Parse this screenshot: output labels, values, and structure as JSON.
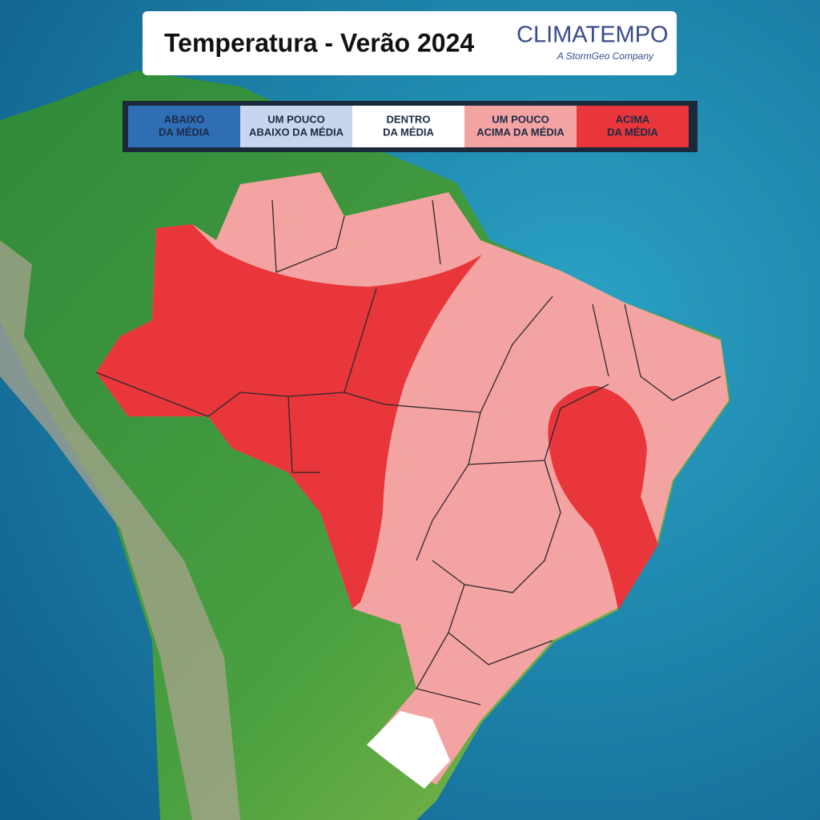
{
  "header": {
    "title": "Temperatura - Verão 2024",
    "logo": "CLIMATEMPO",
    "logo_tagline": "A StormGeo Company"
  },
  "legend": {
    "items": [
      {
        "lines": [
          "ABAIXO",
          "DA MÉDIA"
        ],
        "color": "#2f6db5",
        "text_color": "#1b2a44"
      },
      {
        "lines": [
          "UM POUCO",
          "ABAIXO DA MÉDIA"
        ],
        "color": "#c5d6ee",
        "text_color": "#1b2a44"
      },
      {
        "lines": [
          "DENTRO",
          "DA MÉDIA"
        ],
        "color": "#ffffff",
        "text_color": "#1b2a44"
      },
      {
        "lines": [
          "UM POUCO",
          "ACIMA DA MÉDIA"
        ],
        "color": "#f4a3a3",
        "text_color": "#1b2a44"
      },
      {
        "lines": [
          "ACIMA",
          "DA MÉDIA"
        ],
        "color": "#e8363a",
        "text_color": "#1b2a44"
      }
    ]
  }
}
